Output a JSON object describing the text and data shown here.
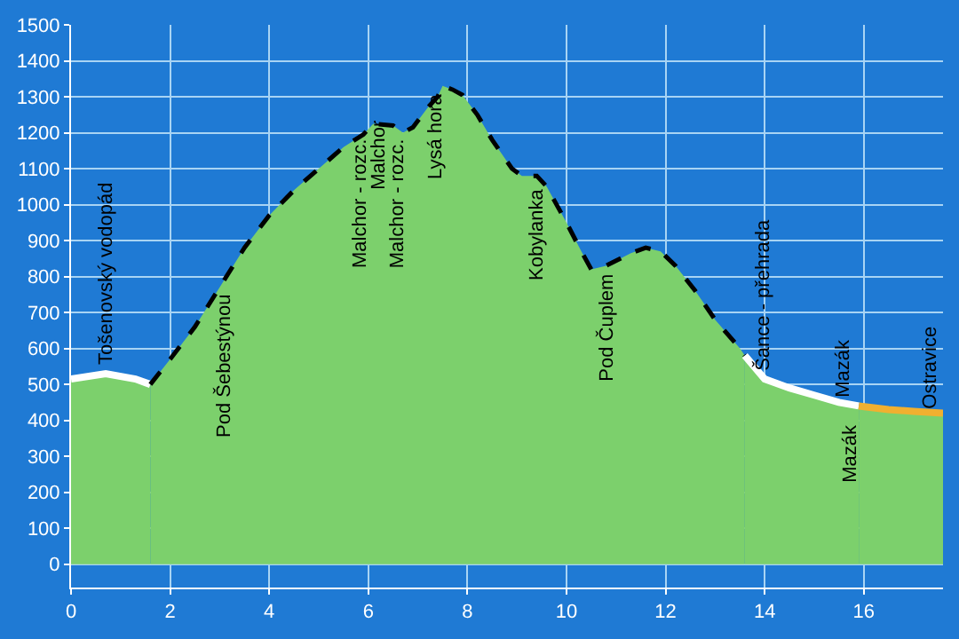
{
  "chart_data": {
    "type": "area",
    "xlim": [
      0,
      17.6
    ],
    "ylim": [
      -65,
      1500
    ],
    "xticks": [
      0,
      2,
      4,
      6,
      8,
      10,
      12,
      14,
      16
    ],
    "yticks": [
      0,
      100,
      200,
      300,
      400,
      500,
      600,
      700,
      800,
      900,
      1000,
      1100,
      1200,
      1300,
      1400,
      1500
    ],
    "grid": true,
    "series": [
      {
        "color": "#ffffff",
        "line_style": "solid",
        "x": [
          0,
          0.7,
          1.3,
          1.6
        ],
        "values": [
          515,
          530,
          515,
          500
        ]
      },
      {
        "color": "#000000",
        "line_style": "dashed",
        "x": [
          1.6,
          2.0,
          2.5,
          3.0,
          3.5,
          4.0,
          4.5,
          5.0,
          5.5,
          5.9,
          6.1,
          6.5,
          6.7,
          6.9,
          7.2,
          7.4,
          7.5,
          7.7,
          7.9,
          8.2,
          8.5,
          8.9,
          9.1,
          9.4,
          9.6,
          10.0,
          10.3,
          10.5,
          10.8,
          11.3,
          11.6,
          11.9,
          12.2,
          12.6,
          13.0,
          13.5,
          13.6
        ],
        "values": [
          500,
          570,
          660,
          770,
          880,
          970,
          1040,
          1100,
          1160,
          1195,
          1225,
          1220,
          1200,
          1215,
          1270,
          1300,
          1330,
          1320,
          1305,
          1250,
          1180,
          1100,
          1080,
          1080,
          1050,
          950,
          870,
          820,
          830,
          865,
          880,
          870,
          830,
          760,
          680,
          600,
          580
        ]
      },
      {
        "color": "#ffffff",
        "line_style": "solid",
        "x": [
          13.6,
          14.0,
          14.5,
          15.0,
          15.5,
          15.9
        ],
        "values": [
          580,
          515,
          490,
          470,
          450,
          440
        ]
      },
      {
        "color": "#f0b030",
        "line_style": "solid",
        "x": [
          15.9,
          16.5,
          17.0,
          17.6
        ],
        "values": [
          440,
          430,
          425,
          420
        ]
      }
    ],
    "annotations": [
      "Tošenovský vodopád",
      "Pod Šebestýnou",
      "Malchor - rozc.",
      "Malchor",
      "Malchor - rozc.",
      "Lysá hora",
      "Kobylanka",
      "Pod Čuplem",
      "Šance - přehrada",
      "Mazák",
      "Mazák",
      "Ostravice"
    ]
  }
}
